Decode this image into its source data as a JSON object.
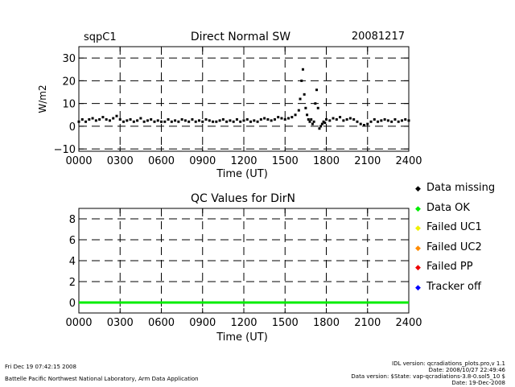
{
  "chart_data": [
    {
      "type": "scatter",
      "site": "sqpC1",
      "title": "Direct Normal SW",
      "date": "20081217",
      "xlabel": "Time (UT)",
      "ylabel": "W/m2",
      "xlim": [
        0,
        24
      ],
      "ylim": [
        -11,
        35
      ],
      "xticks": [
        "0000",
        "0300",
        "0600",
        "0900",
        "1200",
        "1500",
        "1800",
        "2100",
        "2400"
      ],
      "yticks": [
        -10,
        0,
        10,
        20,
        30
      ],
      "grid": "dashed",
      "series": [
        {
          "color": "#000000",
          "x": [
            0.0,
            0.25,
            0.5,
            0.75,
            1.0,
            1.25,
            1.5,
            1.75,
            2.0,
            2.25,
            2.5,
            2.75,
            3.0,
            3.25,
            3.5,
            3.75,
            4.0,
            4.25,
            4.5,
            4.75,
            5.0,
            5.25,
            5.5,
            5.75,
            6.0,
            6.25,
            6.5,
            6.75,
            7.0,
            7.25,
            7.5,
            7.75,
            8.0,
            8.25,
            8.5,
            8.75,
            9.0,
            9.25,
            9.5,
            9.75,
            10.0,
            10.25,
            10.5,
            10.75,
            11.0,
            11.25,
            11.5,
            11.75,
            12.0,
            12.25,
            12.5,
            12.75,
            13.0,
            13.25,
            13.5,
            13.75,
            14.0,
            14.25,
            14.5,
            14.75,
            15.0,
            15.25,
            15.5,
            15.75,
            16.0,
            16.1,
            16.2,
            16.3,
            16.4,
            16.5,
            16.6,
            16.7,
            16.8,
            16.9,
            17.0,
            17.1,
            17.2,
            17.3,
            17.4,
            17.5,
            17.6,
            17.7,
            17.8,
            17.9,
            18.0,
            18.25,
            18.5,
            18.75,
            19.0,
            19.25,
            19.5,
            19.75,
            20.0,
            20.25,
            20.5,
            20.75,
            21.0,
            21.25,
            21.5,
            21.75,
            22.0,
            22.25,
            22.5,
            22.75,
            23.0,
            23.25,
            23.5,
            23.75,
            24.0
          ],
          "y": [
            2.0,
            3.0,
            2.0,
            3.0,
            3.5,
            2.5,
            3.0,
            4.0,
            3.0,
            2.5,
            3.5,
            4.5,
            3.0,
            2.0,
            2.5,
            3.0,
            2.0,
            2.5,
            3.5,
            2.0,
            2.5,
            3.0,
            2.0,
            2.5,
            2.0,
            2.0,
            3.0,
            2.0,
            2.5,
            2.0,
            3.0,
            2.5,
            2.0,
            3.0,
            2.0,
            2.5,
            2.0,
            3.0,
            2.5,
            2.0,
            2.0,
            2.5,
            3.0,
            2.0,
            2.5,
            2.0,
            3.0,
            2.0,
            2.5,
            3.0,
            2.0,
            2.5,
            2.0,
            3.0,
            3.5,
            3.0,
            2.5,
            3.0,
            4.0,
            3.5,
            3.0,
            3.5,
            4.0,
            5.0,
            7.0,
            12.0,
            20.0,
            25.0,
            14.0,
            8.0,
            5.0,
            3.0,
            2.0,
            3.0,
            1.0,
            2.0,
            10.0,
            16.0,
            8.0,
            -1.0,
            0.0,
            1.0,
            2.0,
            1.5,
            3.0,
            2.5,
            3.5,
            3.0,
            4.0,
            2.5,
            3.0,
            3.5,
            3.0,
            2.0,
            1.0,
            0.5,
            1.0,
            2.0,
            3.0,
            2.0,
            2.5,
            3.0,
            2.5,
            2.0,
            3.0,
            2.0,
            2.5,
            3.0,
            2.5
          ]
        }
      ]
    },
    {
      "type": "scatter",
      "title": "QC Values for DirN",
      "xlabel": "Time (UT)",
      "xlim": [
        0,
        24
      ],
      "ylim": [
        -1,
        9
      ],
      "xticks": [
        "0000",
        "0300",
        "0600",
        "0900",
        "1200",
        "1500",
        "1800",
        "2100",
        "2400"
      ],
      "yticks": [
        0,
        2,
        4,
        6,
        8
      ],
      "grid": "dashed",
      "series": [
        {
          "color": "#00ee00",
          "x": [
            0,
            24
          ],
          "y": [
            0,
            0
          ]
        }
      ]
    }
  ],
  "legend": [
    {
      "label": "Data missing",
      "color": "#000000"
    },
    {
      "label": "Data OK",
      "color": "#00ee00"
    },
    {
      "label": "Failed UC1",
      "color": "#f0f000"
    },
    {
      "label": "Failed UC2",
      "color": "#ff8c00"
    },
    {
      "label": "Failed PP",
      "color": "#ee0000"
    },
    {
      "label": "Tracker off",
      "color": "#0000ff"
    }
  ],
  "footer": {
    "timestamp": "Fri Dec 19 07:42:15 2008",
    "org": "Battelle Pacific Northwest National Laboratory, Arm Data Application",
    "idl": "IDL version: qcradiations_plots.pro,v 1.1",
    "date_line": "Date: 2008/10/27 22:49:46",
    "data_version": "Data version: $State: vap-qcradiations-3.8-0.sol5_10 $",
    "run_date": "Date: 19-Dec-2008"
  }
}
